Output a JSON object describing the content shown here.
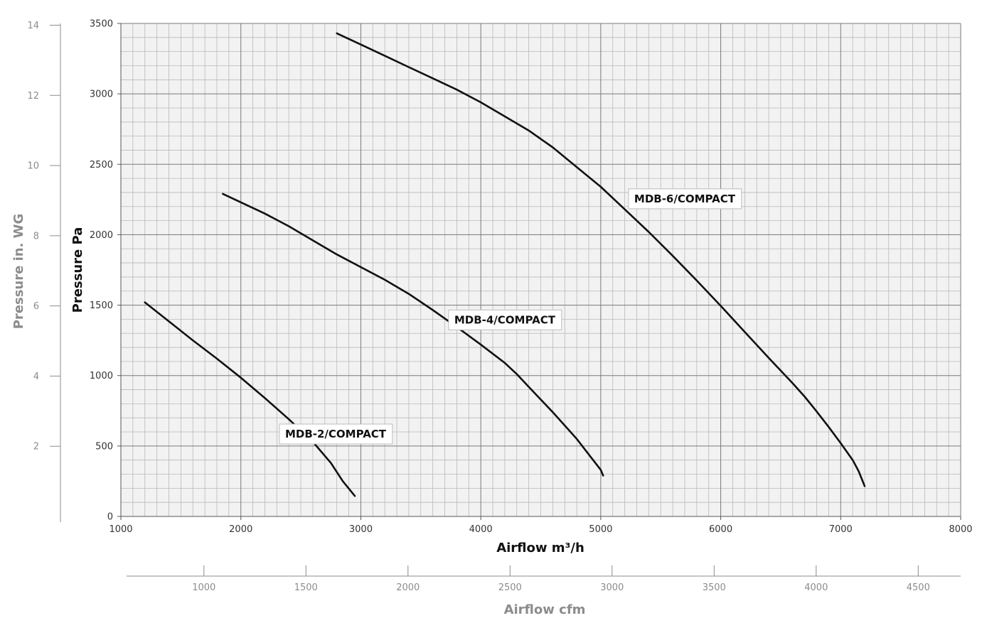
{
  "chart_data": {
    "type": "line",
    "xlabel": "Airflow m³/h",
    "ylabel": "Pressure Pa",
    "xlim": [
      1000,
      8000
    ],
    "ylim": [
      0,
      3500
    ],
    "x_ticks": [
      "1000",
      "2000",
      "3000",
      "4000",
      "5000",
      "6000",
      "7000",
      "8000"
    ],
    "y_ticks": [
      "0",
      "500",
      "1000",
      "1500",
      "2000",
      "2500",
      "3000",
      "3500"
    ],
    "grid": true,
    "secondary_x_axis": {
      "label": "Airflow cfm",
      "lim": [
        621,
        4708
      ],
      "ticks": [
        "1000",
        "1500",
        "2000",
        "2500",
        "3000",
        "3500",
        "4000",
        "4500"
      ]
    },
    "secondary_y_axis": {
      "label": "Pressure in. WG",
      "lim": [
        0,
        14.05
      ],
      "ticks": [
        "2",
        "4",
        "6",
        "8",
        "10",
        "12",
        "14"
      ]
    },
    "series": [
      {
        "name": "MDB-2/COMPACT",
        "label_at": [
          2790,
          585
        ],
        "x": [
          1200,
          1400,
          1600,
          1800,
          2000,
          2200,
          2400,
          2600,
          2750,
          2850,
          2950
        ],
        "y": [
          1520,
          1385,
          1250,
          1120,
          985,
          840,
          690,
          530,
          380,
          250,
          145
        ]
      },
      {
        "name": "MDB-4/COMPACT",
        "label_at": [
          4200,
          1395
        ],
        "x": [
          1850,
          2000,
          2200,
          2400,
          2600,
          2800,
          3000,
          3200,
          3400,
          3600,
          3800,
          4000,
          4200,
          4300,
          4400,
          4600,
          4800,
          5000,
          5020
        ],
        "y": [
          2290,
          2230,
          2150,
          2060,
          1960,
          1860,
          1770,
          1680,
          1580,
          1465,
          1345,
          1220,
          1090,
          1010,
          920,
          740,
          550,
          330,
          290
        ]
      },
      {
        "name": "MDB-6/COMPACT",
        "label_at": [
          5700,
          2255
        ],
        "x": [
          2800,
          3000,
          3200,
          3400,
          3600,
          3800,
          4000,
          4200,
          4400,
          4600,
          4800,
          5000,
          5200,
          5400,
          5600,
          5800,
          6000,
          6200,
          6400,
          6600,
          6700,
          6800,
          6900,
          7000,
          7100,
          7150,
          7200
        ],
        "y": [
          3430,
          3350,
          3270,
          3190,
          3110,
          3030,
          2940,
          2840,
          2740,
          2620,
          2480,
          2340,
          2180,
          2020,
          1850,
          1675,
          1495,
          1310,
          1125,
          945,
          850,
          745,
          635,
          520,
          400,
          320,
          215
        ]
      }
    ]
  }
}
